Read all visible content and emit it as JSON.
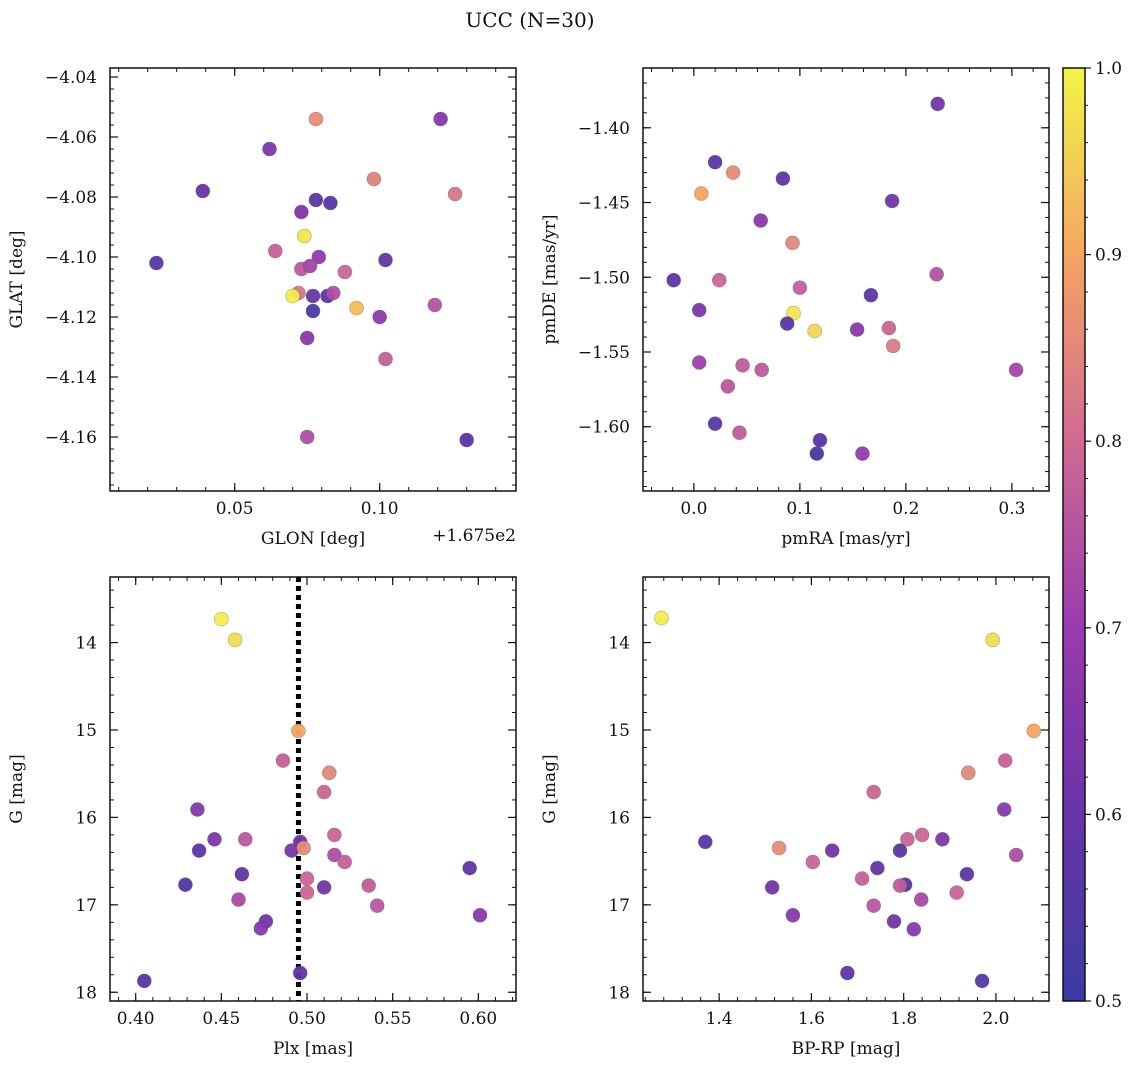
{
  "suptitle": "UCC (N=30)",
  "colorbar": {
    "min": 0.5,
    "max": 1.0,
    "ticks": [
      "0.5",
      "0.6",
      "0.7",
      "0.8",
      "0.9",
      "1.0"
    ]
  },
  "chart_data": [
    {
      "type": "scatter",
      "xlabel": "GLON [deg]",
      "ylabel": "GLAT [deg]",
      "offset_text": "+1.675e2",
      "xlim": [
        0.007,
        0.147
      ],
      "ylim": [
        -4.178,
        -4.037
      ],
      "xticks": [
        0.05,
        0.1
      ],
      "xticklabels": [
        "0.05",
        "0.10"
      ],
      "yticks": [
        -4.04,
        -4.06,
        -4.08,
        -4.1,
        -4.12,
        -4.14,
        -4.16
      ],
      "yticklabels": [
        "−4.04",
        "−4.06",
        "−4.08",
        "−4.10",
        "−4.12",
        "−4.14",
        "−4.16"
      ],
      "yinvert": false,
      "points": [
        {
          "x": 0.078,
          "y": -4.054,
          "c": 0.86
        },
        {
          "x": 0.121,
          "y": -4.054,
          "c": 0.66
        },
        {
          "x": 0.062,
          "y": -4.064,
          "c": 0.64
        },
        {
          "x": 0.039,
          "y": -4.078,
          "c": 0.6
        },
        {
          "x": 0.098,
          "y": -4.074,
          "c": 0.84
        },
        {
          "x": 0.126,
          "y": -4.079,
          "c": 0.82
        },
        {
          "x": 0.078,
          "y": -4.081,
          "c": 0.58
        },
        {
          "x": 0.083,
          "y": -4.082,
          "c": 0.57
        },
        {
          "x": 0.073,
          "y": -4.085,
          "c": 0.65
        },
        {
          "x": 0.074,
          "y": -4.093,
          "c": 0.98
        },
        {
          "x": 0.064,
          "y": -4.098,
          "c": 0.78
        },
        {
          "x": 0.079,
          "y": -4.1,
          "c": 0.68
        },
        {
          "x": 0.102,
          "y": -4.101,
          "c": 0.59
        },
        {
          "x": 0.023,
          "y": -4.102,
          "c": 0.56
        },
        {
          "x": 0.073,
          "y": -4.104,
          "c": 0.76
        },
        {
          "x": 0.076,
          "y": -4.103,
          "c": 0.72
        },
        {
          "x": 0.088,
          "y": -4.105,
          "c": 0.79
        },
        {
          "x": 0.072,
          "y": -4.112,
          "c": 0.82
        },
        {
          "x": 0.07,
          "y": -4.113,
          "c": 0.99
        },
        {
          "x": 0.077,
          "y": -4.113,
          "c": 0.61
        },
        {
          "x": 0.082,
          "y": -4.113,
          "c": 0.57
        },
        {
          "x": 0.084,
          "y": -4.112,
          "c": 0.74
        },
        {
          "x": 0.092,
          "y": -4.117,
          "c": 0.93
        },
        {
          "x": 0.077,
          "y": -4.118,
          "c": 0.54
        },
        {
          "x": 0.119,
          "y": -4.116,
          "c": 0.75
        },
        {
          "x": 0.1,
          "y": -4.12,
          "c": 0.68
        },
        {
          "x": 0.075,
          "y": -4.127,
          "c": 0.67
        },
        {
          "x": 0.102,
          "y": -4.134,
          "c": 0.78
        },
        {
          "x": 0.075,
          "y": -4.16,
          "c": 0.74
        },
        {
          "x": 0.13,
          "y": -4.161,
          "c": 0.57
        }
      ]
    },
    {
      "type": "scatter",
      "xlabel": "pmRA [mas/yr]",
      "ylabel": "pmDE [mas/yr]",
      "xlim": [
        -0.048,
        0.335
      ],
      "ylim": [
        -1.643,
        -1.36
      ],
      "xticks": [
        0.0,
        0.1,
        0.2,
        0.3
      ],
      "xticklabels": [
        "0.0",
        "0.1",
        "0.2",
        "0.3"
      ],
      "yticks": [
        -1.4,
        -1.45,
        -1.5,
        -1.55,
        -1.6
      ],
      "yticklabels": [
        "−1.40",
        "−1.45",
        "−1.50",
        "−1.55",
        "−1.60"
      ],
      "yinvert": false,
      "points": [
        {
          "x": 0.23,
          "y": -1.384,
          "c": 0.62
        },
        {
          "x": 0.02,
          "y": -1.423,
          "c": 0.57
        },
        {
          "x": 0.037,
          "y": -1.43,
          "c": 0.86
        },
        {
          "x": 0.084,
          "y": -1.434,
          "c": 0.58
        },
        {
          "x": 0.007,
          "y": -1.444,
          "c": 0.9
        },
        {
          "x": 0.187,
          "y": -1.449,
          "c": 0.62
        },
        {
          "x": 0.063,
          "y": -1.462,
          "c": 0.67
        },
        {
          "x": 0.093,
          "y": -1.477,
          "c": 0.85
        },
        {
          "x": -0.019,
          "y": -1.502,
          "c": 0.58
        },
        {
          "x": 0.024,
          "y": -1.502,
          "c": 0.79
        },
        {
          "x": 0.229,
          "y": -1.498,
          "c": 0.75
        },
        {
          "x": 0.1,
          "y": -1.507,
          "c": 0.78
        },
        {
          "x": 0.167,
          "y": -1.512,
          "c": 0.58
        },
        {
          "x": 0.005,
          "y": -1.522,
          "c": 0.64
        },
        {
          "x": 0.094,
          "y": -1.524,
          "c": 0.98
        },
        {
          "x": 0.088,
          "y": -1.531,
          "c": 0.56
        },
        {
          "x": 0.114,
          "y": -1.536,
          "c": 0.96
        },
        {
          "x": 0.154,
          "y": -1.535,
          "c": 0.67
        },
        {
          "x": 0.184,
          "y": -1.534,
          "c": 0.79
        },
        {
          "x": 0.188,
          "y": -1.546,
          "c": 0.83
        },
        {
          "x": 0.005,
          "y": -1.557,
          "c": 0.71
        },
        {
          "x": 0.046,
          "y": -1.559,
          "c": 0.77
        },
        {
          "x": 0.064,
          "y": -1.562,
          "c": 0.77
        },
        {
          "x": 0.304,
          "y": -1.562,
          "c": 0.72
        },
        {
          "x": 0.032,
          "y": -1.573,
          "c": 0.76
        },
        {
          "x": 0.043,
          "y": -1.604,
          "c": 0.77
        },
        {
          "x": 0.02,
          "y": -1.598,
          "c": 0.56
        },
        {
          "x": 0.119,
          "y": -1.609,
          "c": 0.57
        },
        {
          "x": 0.116,
          "y": -1.618,
          "c": 0.53
        },
        {
          "x": 0.159,
          "y": -1.618,
          "c": 0.69
        }
      ]
    },
    {
      "type": "scatter",
      "xlabel": "Plx [mas]",
      "ylabel": "G [mag]",
      "xlim": [
        0.385,
        0.622
      ],
      "ylim": [
        13.25,
        18.1
      ],
      "xticks": [
        0.4,
        0.45,
        0.5,
        0.55,
        0.6
      ],
      "xticklabels": [
        "0.40",
        "0.45",
        "0.50",
        "0.55",
        "0.60"
      ],
      "yticks": [
        14,
        15,
        16,
        17,
        18
      ],
      "yticklabels": [
        "14",
        "15",
        "16",
        "17",
        "18"
      ],
      "yinvert": true,
      "vline": 0.495,
      "points": [
        {
          "x": 0.45,
          "y": 13.73,
          "c": 0.99
        },
        {
          "x": 0.458,
          "y": 13.97,
          "c": 0.97
        },
        {
          "x": 0.495,
          "y": 15.01,
          "c": 0.9
        },
        {
          "x": 0.486,
          "y": 15.35,
          "c": 0.78
        },
        {
          "x": 0.513,
          "y": 15.49,
          "c": 0.85
        },
        {
          "x": 0.51,
          "y": 15.71,
          "c": 0.79
        },
        {
          "x": 0.436,
          "y": 15.91,
          "c": 0.66
        },
        {
          "x": 0.516,
          "y": 16.2,
          "c": 0.79
        },
        {
          "x": 0.446,
          "y": 16.25,
          "c": 0.65
        },
        {
          "x": 0.464,
          "y": 16.25,
          "c": 0.76
        },
        {
          "x": 0.496,
          "y": 16.28,
          "c": 0.62
        },
        {
          "x": 0.437,
          "y": 16.38,
          "c": 0.57
        },
        {
          "x": 0.491,
          "y": 16.38,
          "c": 0.63
        },
        {
          "x": 0.498,
          "y": 16.35,
          "c": 0.86
        },
        {
          "x": 0.516,
          "y": 16.43,
          "c": 0.74
        },
        {
          "x": 0.522,
          "y": 16.51,
          "c": 0.78
        },
        {
          "x": 0.462,
          "y": 16.65,
          "c": 0.58
        },
        {
          "x": 0.595,
          "y": 16.58,
          "c": 0.59
        },
        {
          "x": 0.5,
          "y": 16.7,
          "c": 0.79
        },
        {
          "x": 0.429,
          "y": 16.77,
          "c": 0.55
        },
        {
          "x": 0.51,
          "y": 16.8,
          "c": 0.62
        },
        {
          "x": 0.536,
          "y": 16.78,
          "c": 0.77
        },
        {
          "x": 0.5,
          "y": 16.86,
          "c": 0.79
        },
        {
          "x": 0.46,
          "y": 16.94,
          "c": 0.73
        },
        {
          "x": 0.541,
          "y": 17.01,
          "c": 0.76
        },
        {
          "x": 0.601,
          "y": 17.12,
          "c": 0.67
        },
        {
          "x": 0.476,
          "y": 17.19,
          "c": 0.62
        },
        {
          "x": 0.473,
          "y": 17.27,
          "c": 0.66
        },
        {
          "x": 0.496,
          "y": 17.78,
          "c": 0.58
        },
        {
          "x": 0.405,
          "y": 17.87,
          "c": 0.56
        }
      ]
    },
    {
      "type": "scatter",
      "xlabel": "BP-RP [mag]",
      "ylabel": "G [mag]",
      "xlim": [
        1.235,
        2.115
      ],
      "ylim": [
        13.25,
        18.1
      ],
      "xticks": [
        1.4,
        1.6,
        1.8,
        2.0
      ],
      "xticklabels": [
        "1.4",
        "1.6",
        "1.8",
        "2.0"
      ],
      "yticks": [
        14,
        15,
        16,
        17,
        18
      ],
      "yticklabels": [
        "14",
        "15",
        "16",
        "17",
        "18"
      ],
      "yinvert": true,
      "points": [
        {
          "x": 1.275,
          "y": 13.72,
          "c": 0.99
        },
        {
          "x": 1.993,
          "y": 13.97,
          "c": 0.97
        },
        {
          "x": 2.082,
          "y": 15.01,
          "c": 0.9
        },
        {
          "x": 2.02,
          "y": 15.35,
          "c": 0.78
        },
        {
          "x": 1.94,
          "y": 15.49,
          "c": 0.85
        },
        {
          "x": 1.735,
          "y": 15.71,
          "c": 0.79
        },
        {
          "x": 2.018,
          "y": 15.91,
          "c": 0.66
        },
        {
          "x": 1.84,
          "y": 16.2,
          "c": 0.79
        },
        {
          "x": 1.808,
          "y": 16.25,
          "c": 0.79
        },
        {
          "x": 1.884,
          "y": 16.25,
          "c": 0.65
        },
        {
          "x": 1.37,
          "y": 16.28,
          "c": 0.57
        },
        {
          "x": 1.53,
          "y": 16.35,
          "c": 0.86
        },
        {
          "x": 1.645,
          "y": 16.38,
          "c": 0.62
        },
        {
          "x": 1.792,
          "y": 16.38,
          "c": 0.57
        },
        {
          "x": 2.044,
          "y": 16.43,
          "c": 0.74
        },
        {
          "x": 1.603,
          "y": 16.51,
          "c": 0.79
        },
        {
          "x": 1.743,
          "y": 16.58,
          "c": 0.59
        },
        {
          "x": 1.937,
          "y": 16.65,
          "c": 0.58
        },
        {
          "x": 1.71,
          "y": 16.7,
          "c": 0.78
        },
        {
          "x": 1.803,
          "y": 16.77,
          "c": 0.55
        },
        {
          "x": 1.792,
          "y": 16.78,
          "c": 0.77
        },
        {
          "x": 1.515,
          "y": 16.8,
          "c": 0.62
        },
        {
          "x": 1.915,
          "y": 16.86,
          "c": 0.79
        },
        {
          "x": 1.838,
          "y": 16.94,
          "c": 0.73
        },
        {
          "x": 1.735,
          "y": 17.01,
          "c": 0.76
        },
        {
          "x": 1.56,
          "y": 17.12,
          "c": 0.67
        },
        {
          "x": 1.779,
          "y": 17.19,
          "c": 0.62
        },
        {
          "x": 1.822,
          "y": 17.28,
          "c": 0.66
        },
        {
          "x": 1.678,
          "y": 17.78,
          "c": 0.58
        },
        {
          "x": 1.97,
          "y": 17.87,
          "c": 0.56
        }
      ]
    }
  ]
}
